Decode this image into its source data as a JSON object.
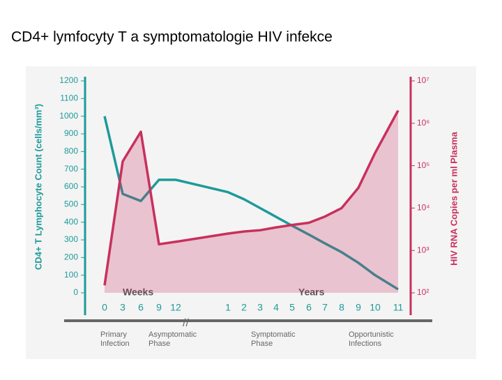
{
  "chart_data": {
    "type": "line",
    "title": "CD4+ lymfocyty T a  symptomatologie HIV infekce",
    "y_label": "CD4+ T Lymphocyte Count (cells/mm³)",
    "y2_label": "HIV RNA Copies per ml Plasma",
    "x_group_labels": [
      "Weeks",
      "Years"
    ],
    "categories": [
      "0",
      "3",
      "6",
      "9",
      "12",
      "1",
      "2",
      "3",
      "4",
      "5",
      "6",
      "7",
      "8",
      "9",
      "10",
      "11"
    ],
    "ylim": [
      0,
      1200
    ],
    "yticks": [
      0,
      100,
      200,
      300,
      400,
      500,
      600,
      700,
      800,
      900,
      1000,
      1100,
      1200
    ],
    "y2lim": [
      100,
      10000000
    ],
    "y2_log": true,
    "y2ticks": [
      {
        "value": 100,
        "label": "10²"
      },
      {
        "value": 1000,
        "label": "10³"
      },
      {
        "value": 10000,
        "label": "10⁴"
      },
      {
        "value": 100000,
        "label": "10⁵"
      },
      {
        "value": 1000000,
        "label": "10⁶"
      },
      {
        "value": 10000000,
        "label": "10⁷"
      }
    ],
    "series": [
      {
        "name": "CD4+ T Lymphocyte Count",
        "color": "#1e9a9a",
        "values": [
          1000,
          560,
          520,
          640,
          640,
          570,
          530,
          480,
          430,
          380,
          330,
          280,
          230,
          170,
          100,
          20
        ]
      },
      {
        "name": "HIV RNA Copies per ml Plasma",
        "color": "#c8305e",
        "axis": "y2",
        "values": [
          150,
          126000,
          630000,
          1400,
          1600,
          2500,
          2800,
          3000,
          3500,
          4000,
          4500,
          6300,
          10000,
          30000,
          200000,
          2000000
        ]
      }
    ],
    "phases": [
      "Primary Infection",
      "Asymptomatic Phase",
      "Symptomatic Phase",
      "Opportunistic Infections"
    ]
  }
}
